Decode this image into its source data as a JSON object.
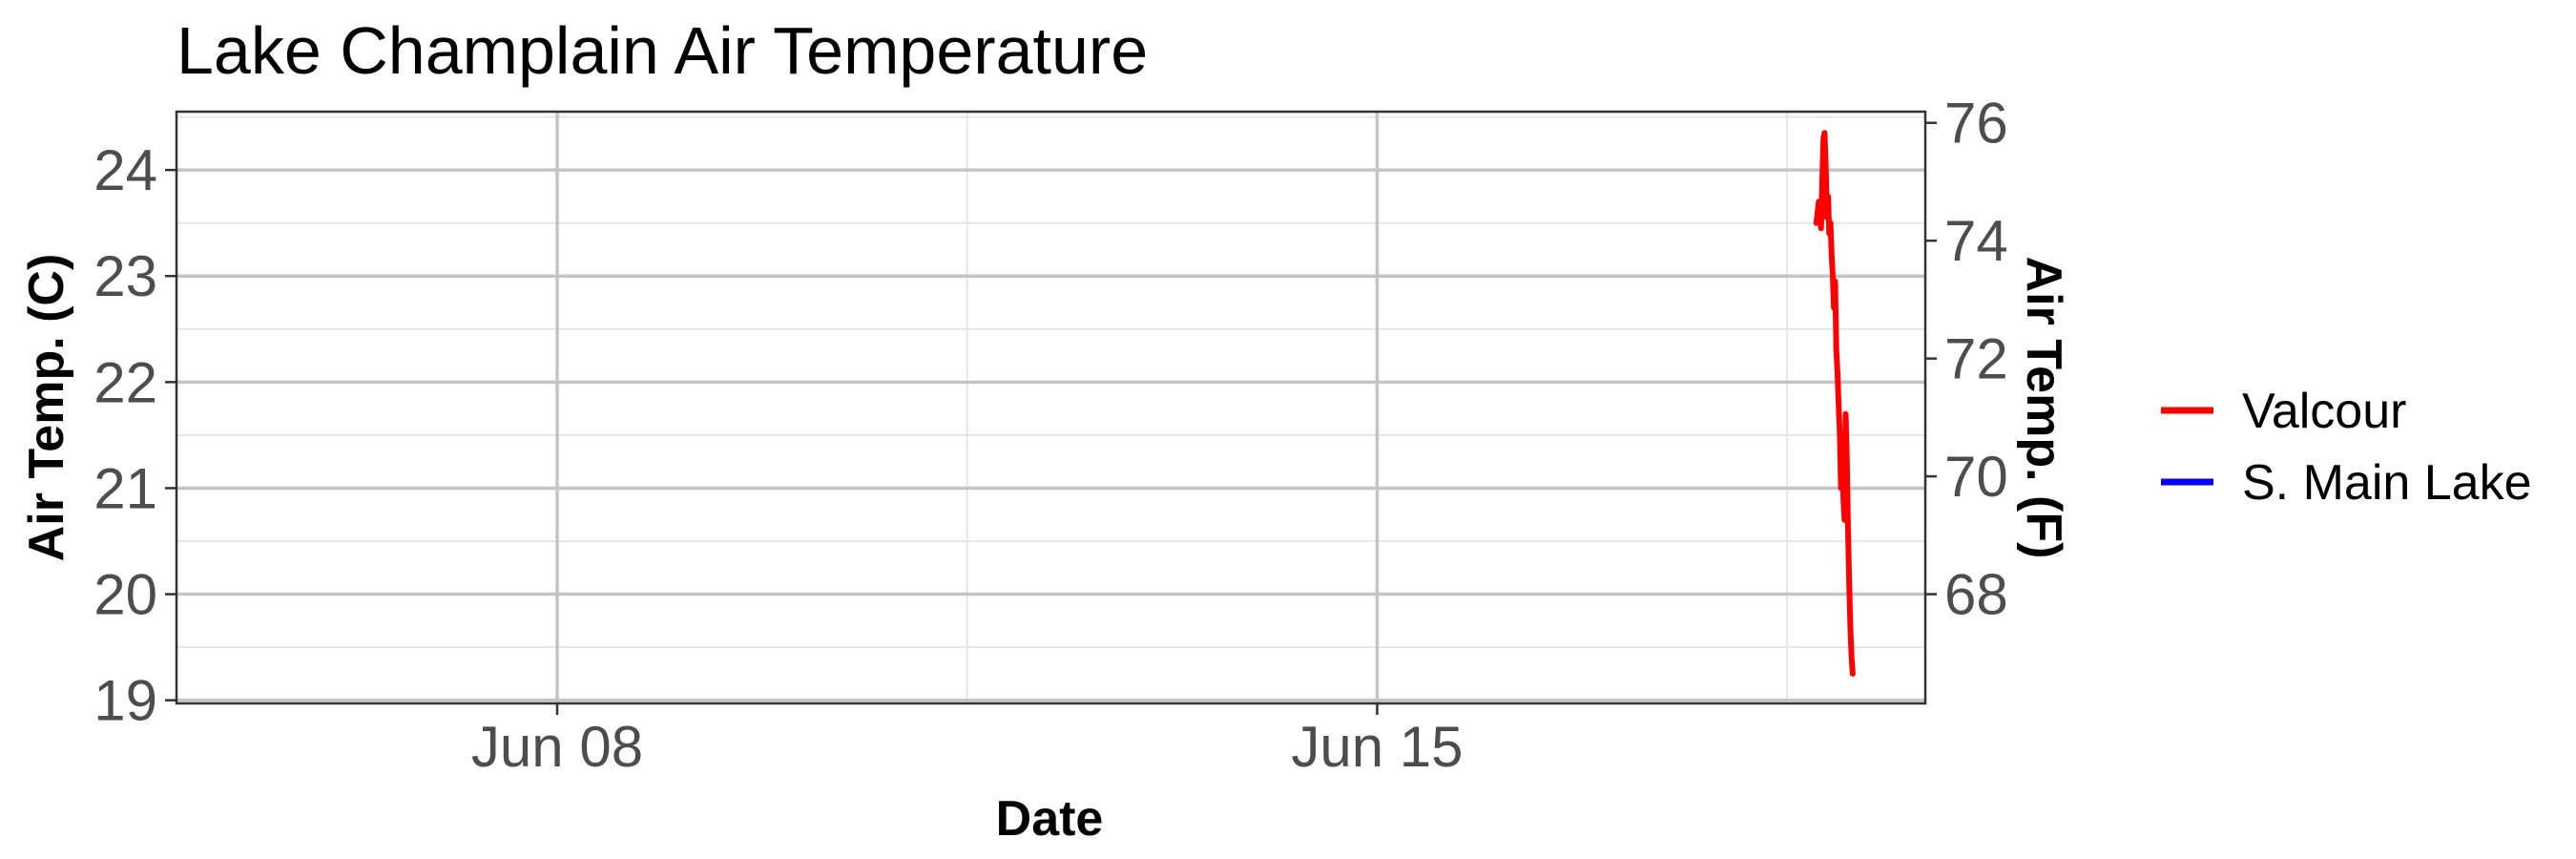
{
  "chart_data": {
    "type": "line",
    "title": "Lake Champlain Air Temperature",
    "xlabel": "Date",
    "ylabel": "Air Temp. (C)",
    "ylabel_right": "Air Temp. (F)",
    "x_ticks": [
      {
        "day": 8,
        "label": "Jun 08"
      },
      {
        "day": 15,
        "label": "Jun 15"
      }
    ],
    "xlim": [
      4.75,
      19.68
    ],
    "ylim": [
      18.97,
      24.55
    ],
    "y_ticks": [
      19,
      20,
      21,
      22,
      23,
      24
    ],
    "y_ticks_right": [
      68,
      70,
      72,
      74,
      76
    ],
    "grid": true,
    "legend_position": "right",
    "series": [
      {
        "name": "Valcour",
        "color": "#ff0000",
        "x": [
          18.75,
          18.77,
          18.79,
          18.8,
          18.81,
          18.82,
          18.83,
          18.84,
          18.85,
          18.86,
          18.87,
          18.88,
          18.89,
          18.9,
          18.91,
          18.92,
          18.93,
          18.94,
          18.95,
          18.96,
          18.97,
          18.98,
          18.99,
          19.0,
          19.01,
          19.02,
          19.03,
          19.04,
          19.05,
          19.06
        ],
        "values": [
          23.5,
          23.7,
          23.45,
          23.9,
          24.3,
          24.35,
          24.05,
          23.55,
          23.75,
          23.4,
          23.5,
          23.2,
          23.0,
          22.7,
          22.95,
          22.3,
          22.1,
          21.8,
          21.5,
          21.0,
          21.4,
          20.9,
          20.7,
          21.7,
          21.3,
          20.6,
          20.1,
          19.7,
          19.4,
          19.25
        ]
      },
      {
        "name": "S. Main Lake",
        "color": "#0000ff",
        "x": [],
        "values": []
      }
    ]
  }
}
